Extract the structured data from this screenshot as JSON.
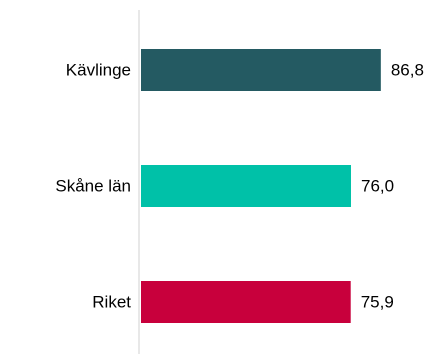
{
  "chart_data": {
    "type": "bar",
    "orientation": "horizontal",
    "categories": [
      "Kävlinge",
      "Skåne län",
      "Riket"
    ],
    "values": [
      86.8,
      76.0,
      75.9
    ],
    "value_labels": [
      "86,8",
      "76,0",
      "75,9"
    ],
    "colors": [
      "#245a62",
      "#00c1a8",
      "#c8003c"
    ],
    "axis_color": "#d0d0d0",
    "xlim": [
      0,
      100
    ],
    "grid": false,
    "legend": "none",
    "title": "",
    "xlabel": "",
    "ylabel": ""
  }
}
